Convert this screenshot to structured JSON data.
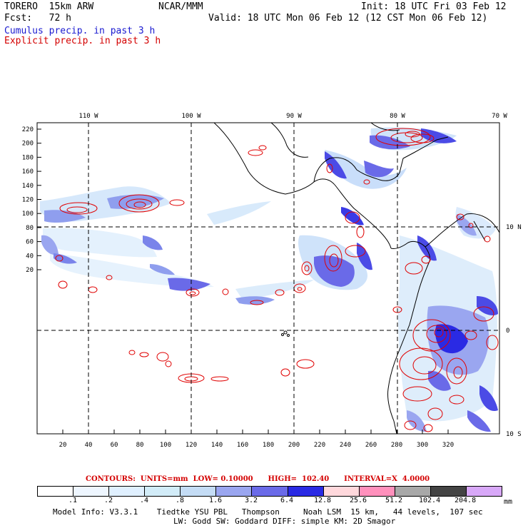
{
  "header": {
    "model": "TORERO  15km ARW",
    "org": "NCAR/MMM",
    "init": "Init: 18 UTC Fri 03 Feb 12",
    "fcst": "Fcst:   72 h",
    "valid": "Valid: 18 UTC Mon 06 Feb 12 (12 CST Mon 06 Feb 12)",
    "legend_cumulus": "Cumulus precip. in past 3 h",
    "legend_explicit": "Explicit precip. in past 3 h"
  },
  "map": {
    "top_lon_labels": [
      "110 W",
      "100 W",
      "90 W",
      "80 W",
      "70 W"
    ],
    "right_lat_labels": [
      "10 N",
      "0",
      "10 S"
    ],
    "y_grid_labels": [
      "220",
      "200",
      "180",
      "160",
      "140",
      "120",
      "100",
      "80",
      "60",
      "40",
      "20"
    ],
    "x_grid_labels": [
      "20",
      "40",
      "60",
      "80",
      "100",
      "120",
      "140",
      "160",
      "180",
      "200",
      "220",
      "240",
      "260",
      "280",
      "300",
      "320"
    ],
    "colors": {
      "explicit_contour": "#e00000",
      "grid_dash": "#000000",
      "coast": "#000000"
    }
  },
  "contour_info": {
    "text": "CONTOURS:  UNITS=mm  LOW= 0.10000      HIGH=  102.40      INTERVAL=X  4.0000"
  },
  "colorbar": {
    "labels": [
      ".1",
      ".2",
      ".4",
      ".8",
      "1.6",
      "3.2",
      "6.4",
      "12.8",
      "25.6",
      "51.2",
      "102.4",
      "204.8"
    ],
    "unit": "mm",
    "colors": [
      "#ffffff",
      "#eef6ff",
      "#e0f0ff",
      "#d2ecf8",
      "#c4dcf5",
      "#9aa6f0",
      "#6a6ae8",
      "#2a2ae4",
      "#ffd8dc",
      "#ff90bc",
      "#a8a8a8",
      "#444444",
      "#d8a8f8"
    ]
  },
  "footer": {
    "line1": "Model Info: V3.3.1    Tiedtke YSU PBL   Thompson     Noah LSM  15 km,   44 levels,  107 sec",
    "line2": "LW: Godd SW: Goddard DIFF: simple KM: 2D Smagor"
  }
}
